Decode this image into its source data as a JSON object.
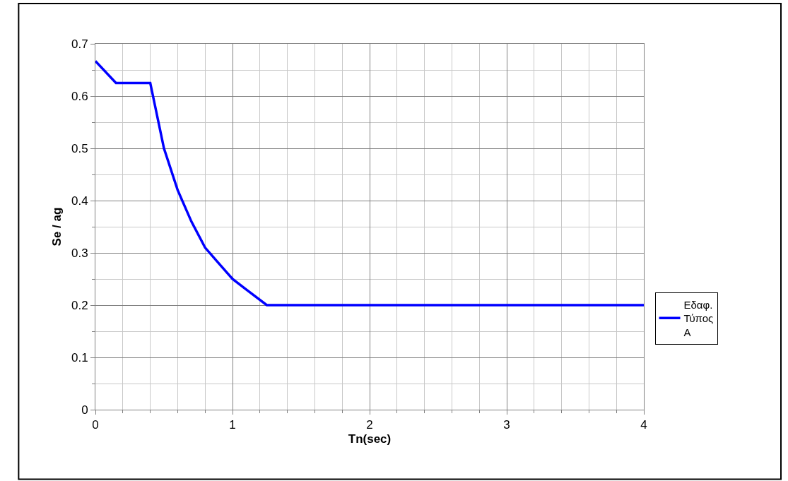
{
  "chart_data": {
    "type": "line",
    "xlabel": "Tn(sec)",
    "ylabel": "Se / ag",
    "series": [
      {
        "name": "Εδαφ. Τύπος Α",
        "color": "#0000ff",
        "x": [
          0,
          0.15,
          0.4,
          0.5,
          0.6,
          0.7,
          0.8,
          0.9,
          1.0,
          1.1,
          1.25,
          4
        ],
        "values": [
          0.667,
          0.625,
          0.625,
          0.5,
          0.42,
          0.36,
          0.31,
          0.28,
          0.25,
          0.23,
          0.2,
          0.2
        ]
      }
    ],
    "xlim": [
      0,
      4
    ],
    "xticks": [
      0,
      1,
      2,
      3,
      4
    ],
    "ylim": [
      0,
      0.7
    ],
    "yticks": [
      0,
      0.1,
      0.2,
      0.3,
      0.4,
      0.5,
      0.6,
      0.7
    ],
    "grid": true,
    "legend": "bottom right",
    "marker": "none",
    "line_style": "solid"
  }
}
